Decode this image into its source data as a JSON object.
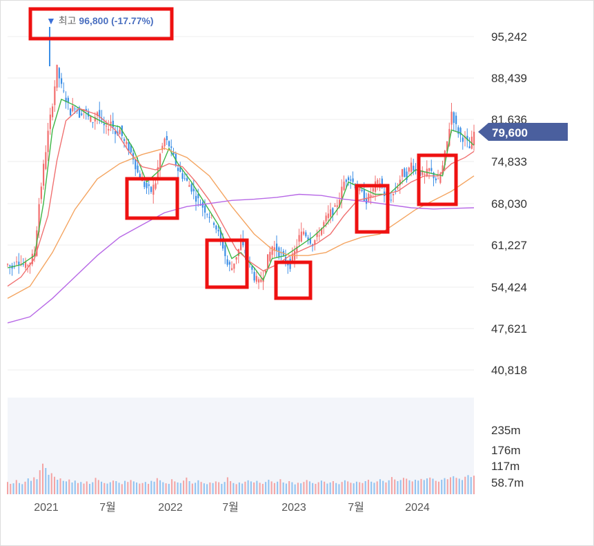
{
  "chart_data": {
    "type": "candlestick",
    "price_axis": {
      "ticks": [
        "95,242",
        "88,439",
        "81,636",
        "74,833",
        "68,030",
        "61,227",
        "54,424",
        "47,621",
        "40,818"
      ],
      "range": [
        40818,
        95242
      ]
    },
    "volume_axis": {
      "ticks": [
        "235m",
        "176m",
        "117m",
        "58.7m"
      ]
    },
    "x_axis": {
      "ticks": [
        "2021",
        "7월",
        "2022",
        "7월",
        "2023",
        "7월",
        "2024"
      ]
    },
    "current_price": {
      "label": "79,600",
      "value": 79600,
      "color": "#4a5f9e"
    },
    "peak": {
      "arrow": "▼",
      "prefix": "최고",
      "value_text": "96,800 (-17.77%)",
      "value": 96800
    },
    "close_series": [
      [
        0,
        58000
      ],
      [
        2,
        57500
      ],
      [
        4,
        59000
      ],
      [
        6,
        58200
      ],
      [
        8,
        57800
      ],
      [
        10,
        58500
      ],
      [
        12,
        60000
      ],
      [
        14,
        68000
      ],
      [
        16,
        74000
      ],
      [
        18,
        79500
      ],
      [
        20,
        84500
      ],
      [
        22,
        90000
      ],
      [
        24,
        87000
      ],
      [
        26,
        85000
      ],
      [
        28,
        83000
      ],
      [
        30,
        84000
      ],
      [
        32,
        82500
      ],
      [
        34,
        83500
      ],
      [
        36,
        82000
      ],
      [
        38,
        81500
      ],
      [
        40,
        83000
      ],
      [
        42,
        81000
      ],
      [
        44,
        80000
      ],
      [
        46,
        81500
      ],
      [
        48,
        79500
      ],
      [
        50,
        80000
      ],
      [
        52,
        78000
      ],
      [
        54,
        77000
      ],
      [
        56,
        75500
      ],
      [
        58,
        73000
      ],
      [
        60,
        71500
      ],
      [
        62,
        70500
      ],
      [
        64,
        70000
      ],
      [
        66,
        71500
      ],
      [
        68,
        76000
      ],
      [
        70,
        78500
      ],
      [
        72,
        77500
      ],
      [
        74,
        75500
      ],
      [
        76,
        73500
      ],
      [
        78,
        72500
      ],
      [
        80,
        71500
      ],
      [
        82,
        70500
      ],
      [
        84,
        69000
      ],
      [
        86,
        68000
      ],
      [
        88,
        67000
      ],
      [
        90,
        66000
      ],
      [
        92,
        65000
      ],
      [
        94,
        63000
      ],
      [
        96,
        61000
      ],
      [
        98,
        58000
      ],
      [
        100,
        57500
      ],
      [
        102,
        59500
      ],
      [
        104,
        61500
      ],
      [
        106,
        60000
      ],
      [
        108,
        58000
      ],
      [
        110,
        56000
      ],
      [
        112,
        55000
      ],
      [
        114,
        56500
      ],
      [
        116,
        59000
      ],
      [
        118,
        61000
      ],
      [
        120,
        60500
      ],
      [
        122,
        59500
      ],
      [
        124,
        58500
      ],
      [
        126,
        58000
      ],
      [
        128,
        60000
      ],
      [
        130,
        62500
      ],
      [
        132,
        63500
      ],
      [
        134,
        62500
      ],
      [
        136,
        61500
      ],
      [
        138,
        62500
      ],
      [
        140,
        64000
      ],
      [
        142,
        65500
      ],
      [
        144,
        66500
      ],
      [
        146,
        67000
      ],
      [
        148,
        69000
      ],
      [
        150,
        71500
      ],
      [
        152,
        72500
      ],
      [
        154,
        71500
      ],
      [
        156,
        70500
      ],
      [
        158,
        69500
      ],
      [
        160,
        68500
      ],
      [
        162,
        69500
      ],
      [
        164,
        71000
      ],
      [
        166,
        71500
      ],
      [
        168,
        69500
      ],
      [
        170,
        68500
      ],
      [
        172,
        69500
      ],
      [
        174,
        71000
      ],
      [
        176,
        73000
      ],
      [
        178,
        72500
      ],
      [
        180,
        74500
      ],
      [
        182,
        73500
      ],
      [
        184,
        73000
      ],
      [
        186,
        72500
      ],
      [
        188,
        73500
      ],
      [
        190,
        72500
      ],
      [
        192,
        71500
      ],
      [
        194,
        74000
      ],
      [
        196,
        78000
      ],
      [
        198,
        83000
      ],
      [
        200,
        80500
      ],
      [
        202,
        79000
      ],
      [
        204,
        78500
      ],
      [
        206,
        77000
      ],
      [
        208,
        79600
      ]
    ],
    "moving_averages": [
      {
        "color": "#3cb544",
        "points": [
          [
            0,
            57500
          ],
          [
            6,
            58000
          ],
          [
            12,
            59500
          ],
          [
            16,
            68000
          ],
          [
            20,
            80000
          ],
          [
            24,
            85000
          ],
          [
            30,
            84000
          ],
          [
            36,
            82500
          ],
          [
            44,
            81000
          ],
          [
            50,
            80500
          ],
          [
            56,
            77000
          ],
          [
            62,
            71500
          ],
          [
            68,
            73500
          ],
          [
            72,
            77000
          ],
          [
            76,
            74500
          ],
          [
            82,
            71500
          ],
          [
            88,
            68000
          ],
          [
            94,
            64500
          ],
          [
            100,
            59000
          ],
          [
            104,
            60000
          ],
          [
            110,
            57500
          ],
          [
            114,
            55500
          ],
          [
            118,
            59000
          ],
          [
            124,
            59500
          ],
          [
            130,
            61000
          ],
          [
            136,
            62500
          ],
          [
            142,
            64500
          ],
          [
            148,
            67500
          ],
          [
            152,
            71500
          ],
          [
            158,
            70500
          ],
          [
            164,
            69500
          ],
          [
            170,
            69500
          ],
          [
            176,
            71500
          ],
          [
            182,
            73500
          ],
          [
            188,
            73000
          ],
          [
            194,
            72500
          ],
          [
            198,
            80000
          ],
          [
            202,
            79500
          ],
          [
            208,
            77500
          ]
        ]
      },
      {
        "color": "#f07070",
        "points": [
          [
            0,
            54500
          ],
          [
            6,
            56000
          ],
          [
            12,
            59000
          ],
          [
            18,
            66000
          ],
          [
            22,
            75000
          ],
          [
            26,
            81500
          ],
          [
            32,
            83500
          ],
          [
            40,
            82500
          ],
          [
            48,
            80000
          ],
          [
            54,
            76500
          ],
          [
            60,
            74000
          ],
          [
            66,
            73500
          ],
          [
            72,
            74500
          ],
          [
            78,
            74000
          ],
          [
            84,
            71500
          ],
          [
            90,
            68500
          ],
          [
            96,
            64500
          ],
          [
            102,
            60500
          ],
          [
            108,
            58500
          ],
          [
            114,
            57000
          ],
          [
            120,
            58000
          ],
          [
            126,
            59500
          ],
          [
            132,
            60500
          ],
          [
            138,
            61500
          ],
          [
            144,
            63000
          ],
          [
            150,
            66000
          ],
          [
            156,
            68500
          ],
          [
            162,
            69000
          ],
          [
            168,
            69500
          ],
          [
            174,
            70000
          ],
          [
            180,
            71500
          ],
          [
            186,
            72500
          ],
          [
            192,
            72500
          ],
          [
            198,
            74500
          ],
          [
            204,
            75500
          ],
          [
            208,
            76500
          ]
        ]
      },
      {
        "color": "#f4a460",
        "points": [
          [
            0,
            52500
          ],
          [
            10,
            54500
          ],
          [
            20,
            60000
          ],
          [
            30,
            67000
          ],
          [
            40,
            72000
          ],
          [
            50,
            74500
          ],
          [
            60,
            76000
          ],
          [
            70,
            77000
          ],
          [
            80,
            75500
          ],
          [
            90,
            72500
          ],
          [
            100,
            67500
          ],
          [
            110,
            63000
          ],
          [
            118,
            60500
          ],
          [
            126,
            59500
          ],
          [
            134,
            59500
          ],
          [
            142,
            60000
          ],
          [
            150,
            61500
          ],
          [
            158,
            62500
          ],
          [
            166,
            63000
          ],
          [
            174,
            65000
          ],
          [
            182,
            67000
          ],
          [
            190,
            68500
          ],
          [
            198,
            70000
          ],
          [
            208,
            72500
          ]
        ]
      },
      {
        "color": "#b768e6",
        "points": [
          [
            0,
            48500
          ],
          [
            10,
            49500
          ],
          [
            20,
            52500
          ],
          [
            30,
            56000
          ],
          [
            40,
            59500
          ],
          [
            50,
            62500
          ],
          [
            60,
            64500
          ],
          [
            70,
            66500
          ],
          [
            80,
            67500
          ],
          [
            90,
            68000
          ],
          [
            100,
            68500
          ],
          [
            110,
            68700
          ],
          [
            120,
            69000
          ],
          [
            130,
            69500
          ],
          [
            140,
            69300
          ],
          [
            150,
            68700
          ],
          [
            160,
            68300
          ],
          [
            170,
            67800
          ],
          [
            180,
            67300
          ],
          [
            190,
            67100
          ],
          [
            198,
            67200
          ],
          [
            208,
            67300
          ]
        ]
      }
    ],
    "volume": [
      45,
      38,
      40,
      52,
      41,
      37,
      46,
      58,
      49,
      62,
      55,
      88,
      112,
      96,
      71,
      77,
      64,
      53,
      58,
      49,
      47,
      54,
      43,
      50,
      41,
      45,
      39,
      47,
      38,
      44,
      60,
      52,
      46,
      41,
      39,
      44,
      50,
      48,
      42,
      37,
      49,
      45,
      52,
      47,
      43,
      39,
      41,
      45,
      38,
      49,
      46,
      59,
      51,
      44,
      40,
      38,
      55,
      47,
      43,
      41,
      50,
      61,
      48,
      39,
      42,
      51,
      45,
      40,
      37,
      43,
      41,
      47,
      44,
      38,
      45,
      62,
      48,
      41,
      37,
      43,
      39,
      46,
      51,
      47,
      43,
      49,
      42,
      38,
      45,
      53,
      47,
      41,
      46,
      55,
      43,
      39,
      48,
      44,
      36,
      42,
      40,
      45,
      52,
      47,
      41,
      38,
      44,
      50,
      46,
      39,
      43,
      48,
      41,
      37,
      45,
      51,
      47,
      42,
      40,
      46,
      44,
      41,
      48,
      53,
      46,
      42,
      47,
      55,
      49,
      43,
      51,
      63,
      54,
      48,
      52,
      60,
      57,
      51,
      47,
      53,
      50,
      56,
      52,
      58,
      61,
      57,
      49,
      46,
      53,
      59,
      55,
      62,
      66,
      60,
      57,
      52,
      64,
      70,
      63,
      68
    ]
  }
}
